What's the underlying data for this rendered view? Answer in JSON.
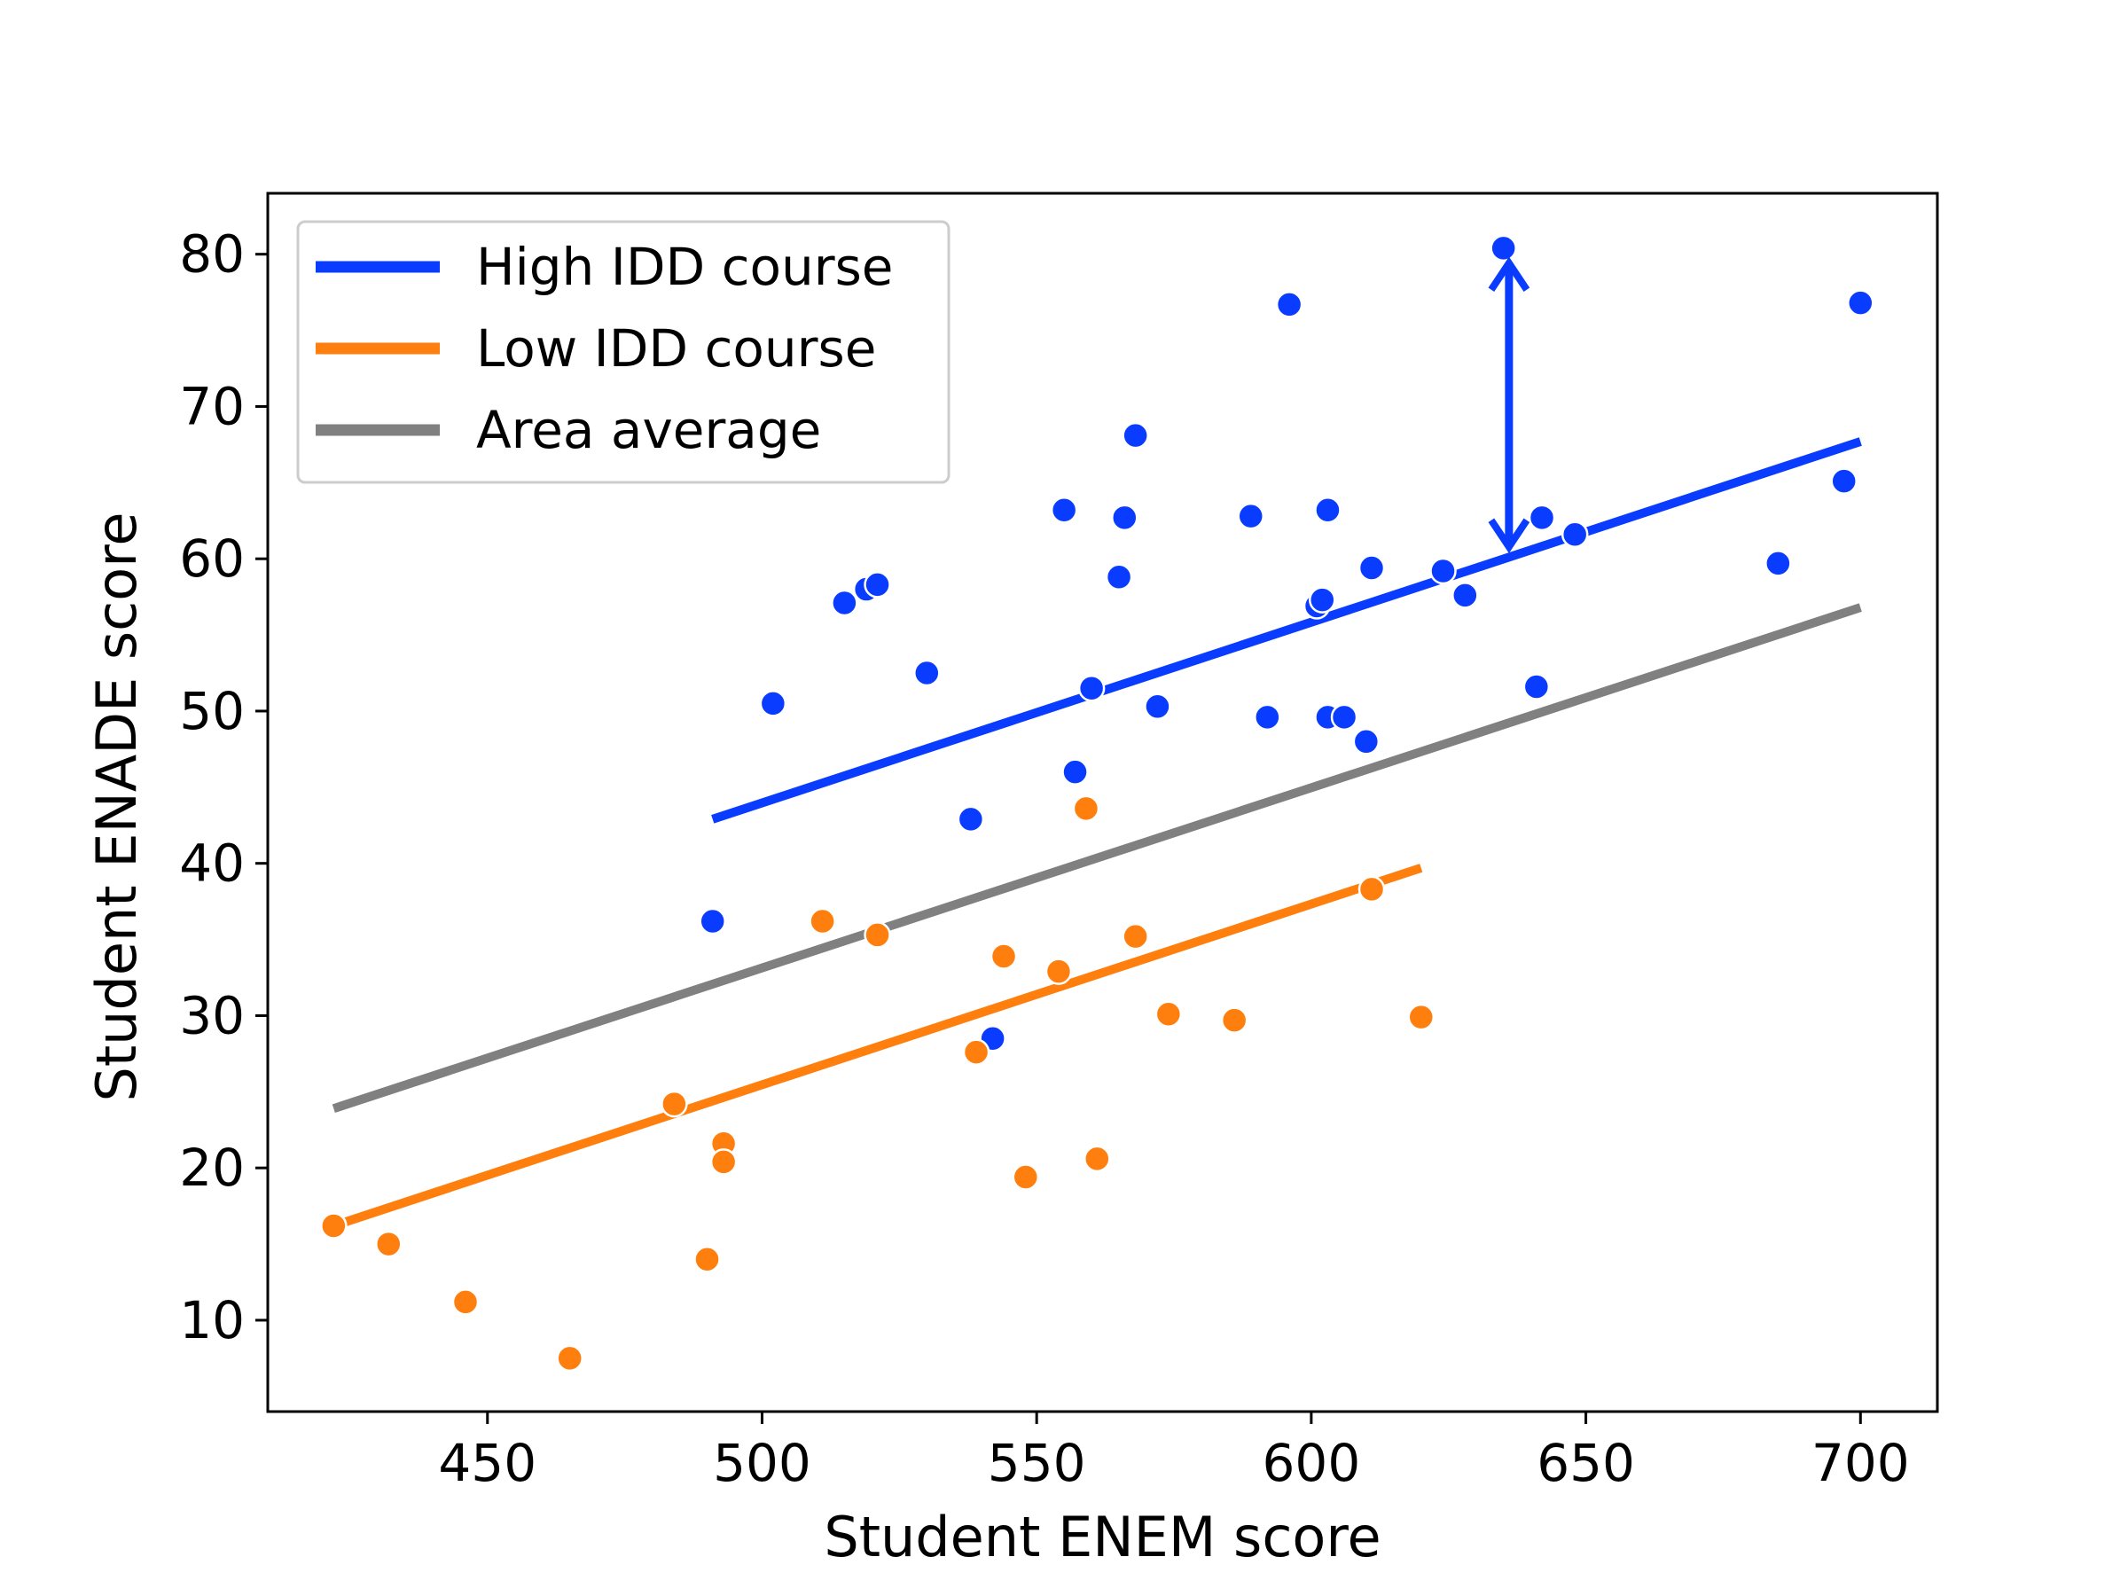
{
  "chart_data": {
    "type": "scatter",
    "xlabel": "Student ENEM score",
    "ylabel": "Student ENADE score",
    "xlim": [
      410,
      714
    ],
    "ylim": [
      4,
      84
    ],
    "x_ticks": [
      450,
      500,
      550,
      600,
      650,
      700
    ],
    "y_ticks": [
      10,
      20,
      30,
      40,
      50,
      60,
      70,
      80
    ],
    "grid": false,
    "legend_placement": "top-left",
    "legend": [
      {
        "label": "High IDD course",
        "color": "#0a3cff"
      },
      {
        "label": "Low IDD course",
        "color": "#ff7f0e"
      },
      {
        "label": "Area average",
        "color": "#808080"
      }
    ],
    "series": [
      {
        "name": "High IDD course",
        "kind": "scatter",
        "color": "#0a3cff",
        "points": [
          [
            491,
            36.2
          ],
          [
            502,
            50.5
          ],
          [
            515,
            57.1
          ],
          [
            519,
            58.0
          ],
          [
            521,
            58.3
          ],
          [
            530,
            52.5
          ],
          [
            538,
            42.9
          ],
          [
            542,
            28.5
          ],
          [
            555,
            63.2
          ],
          [
            557,
            46.0
          ],
          [
            560,
            51.5
          ],
          [
            565,
            58.8
          ],
          [
            566,
            62.7
          ],
          [
            568,
            68.1
          ],
          [
            572,
            50.3
          ],
          [
            589,
            62.8
          ],
          [
            592,
            49.6
          ],
          [
            596,
            76.7
          ],
          [
            601,
            56.9
          ],
          [
            602,
            57.3
          ],
          [
            603,
            49.6
          ],
          [
            603,
            63.2
          ],
          [
            606,
            49.6
          ],
          [
            610,
            48.0
          ],
          [
            611,
            59.4
          ],
          [
            624,
            59.2
          ],
          [
            628,
            57.6
          ],
          [
            635,
            80.4
          ],
          [
            641,
            51.6
          ],
          [
            642,
            62.7
          ],
          [
            648,
            61.6
          ],
          [
            685,
            59.7
          ],
          [
            697,
            65.1
          ],
          [
            700,
            76.8
          ]
        ]
      },
      {
        "name": "Low IDD course",
        "kind": "scatter",
        "color": "#ff7f0e",
        "points": [
          [
            422,
            16.2
          ],
          [
            432,
            15.0
          ],
          [
            446,
            11.2
          ],
          [
            465,
            7.5
          ],
          [
            484,
            24.2
          ],
          [
            490,
            14.0
          ],
          [
            493,
            21.6
          ],
          [
            493,
            20.4
          ],
          [
            511,
            36.2
          ],
          [
            521,
            35.3
          ],
          [
            539,
            27.6
          ],
          [
            544,
            33.9
          ],
          [
            548,
            19.4
          ],
          [
            554,
            32.9
          ],
          [
            559,
            43.6
          ],
          [
            561,
            20.6
          ],
          [
            568,
            35.2
          ],
          [
            574,
            30.1
          ],
          [
            586,
            29.7
          ],
          [
            611,
            38.3
          ],
          [
            620,
            29.9
          ]
        ]
      }
    ],
    "lines": [
      {
        "name": "High IDD course",
        "color": "#0a3cff",
        "x": [
          491,
          700
        ],
        "y": [
          42.9,
          67.7
        ]
      },
      {
        "name": "Low IDD course",
        "color": "#ff7f0e",
        "x": [
          422,
          620
        ],
        "y": [
          16.2,
          39.7
        ]
      },
      {
        "name": "Area average",
        "color": "#808080",
        "x": [
          422,
          700
        ],
        "y": [
          23.9,
          56.8
        ]
      }
    ],
    "annotations": [
      {
        "type": "double-arrow",
        "color": "#0a3cff",
        "x": 636,
        "y_from": 60.9,
        "y_to": 79.3
      }
    ]
  }
}
